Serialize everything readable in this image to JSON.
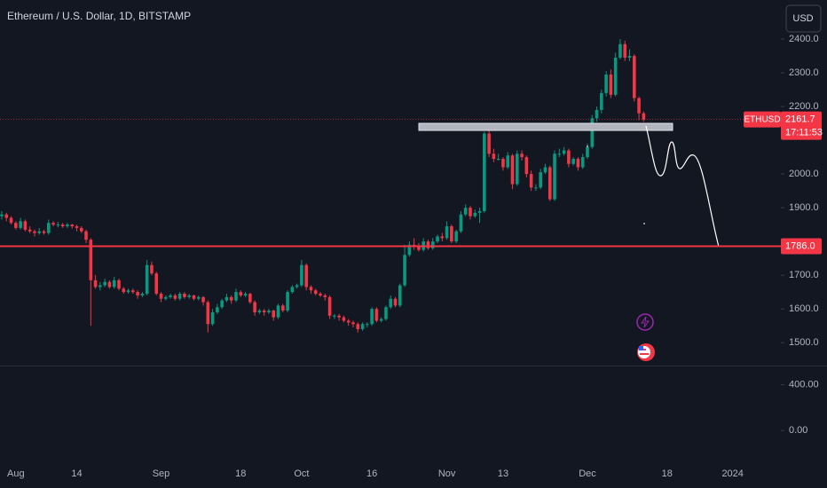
{
  "chart_data": {
    "type": "candlestick",
    "title": "Ethereum / U.S. Dollar, 1D, BITSTAMP",
    "currency": "USD",
    "categories": [
      null,
      null,
      null,
      "Aug",
      null,
      null,
      null,
      null,
      null,
      null,
      null,
      null,
      null,
      null,
      null,
      null,
      "14",
      null,
      null,
      null,
      null,
      null,
      null,
      null,
      null,
      null,
      null,
      null,
      null,
      null,
      null,
      null,
      null,
      null,
      "Sep",
      null,
      null,
      null,
      null,
      null,
      null,
      null,
      null,
      null,
      null,
      null,
      null,
      null,
      null,
      null,
      null,
      "18",
      null,
      null,
      null,
      null,
      null,
      null,
      null,
      null,
      null,
      null,
      null,
      null,
      "Oct",
      null,
      null,
      null,
      null,
      null,
      null,
      null,
      null,
      null,
      null,
      null,
      null,
      null,
      null,
      "16",
      null,
      null,
      null,
      null,
      null,
      null,
      null,
      null,
      null,
      null,
      null,
      null,
      null,
      null,
      null,
      "Nov",
      null,
      null,
      null,
      null,
      null,
      null,
      null,
      null,
      null,
      null,
      null,
      "13",
      null,
      null,
      null,
      null,
      null,
      null,
      null,
      null,
      null,
      null,
      null,
      null,
      null,
      null,
      null,
      null,
      null,
      "Dec",
      null,
      null,
      null,
      null,
      null,
      null,
      null,
      null,
      null,
      null,
      null,
      null,
      null,
      null,
      null,
      null,
      "18",
      null,
      null,
      null,
      null,
      null,
      null,
      null,
      null,
      null,
      null,
      null,
      null,
      null,
      "2024",
      null,
      null,
      null,
      null,
      null,
      null,
      null,
      null,
      null
    ],
    "ohlc": [
      [
        1875,
        1890,
        1865,
        1880
      ],
      [
        1880,
        1885,
        1860,
        1870
      ],
      [
        1870,
        1875,
        1850,
        1855
      ],
      [
        1855,
        1860,
        1835,
        1840
      ],
      [
        1840,
        1870,
        1835,
        1860
      ],
      [
        1860,
        1865,
        1830,
        1835
      ],
      [
        1835,
        1845,
        1825,
        1830
      ],
      [
        1830,
        1835,
        1815,
        1825
      ],
      [
        1825,
        1840,
        1820,
        1830
      ],
      [
        1830,
        1835,
        1820,
        1825
      ],
      [
        1825,
        1865,
        1820,
        1855
      ],
      [
        1855,
        1860,
        1845,
        1850
      ],
      [
        1850,
        1858,
        1842,
        1850
      ],
      [
        1850,
        1855,
        1840,
        1845
      ],
      [
        1845,
        1855,
        1840,
        1850
      ],
      [
        1850,
        1852,
        1838,
        1845
      ],
      [
        1845,
        1850,
        1830,
        1840
      ],
      [
        1840,
        1845,
        1825,
        1830
      ],
      [
        1830,
        1835,
        1795,
        1805
      ],
      [
        1805,
        1810,
        1550,
        1685
      ],
      [
        1685,
        1700,
        1660,
        1665
      ],
      [
        1665,
        1680,
        1655,
        1670
      ],
      [
        1670,
        1690,
        1665,
        1680
      ],
      [
        1680,
        1685,
        1660,
        1665
      ],
      [
        1665,
        1695,
        1660,
        1685
      ],
      [
        1685,
        1690,
        1655,
        1660
      ],
      [
        1660,
        1665,
        1645,
        1650
      ],
      [
        1650,
        1660,
        1645,
        1655
      ],
      [
        1655,
        1660,
        1645,
        1650
      ],
      [
        1650,
        1655,
        1630,
        1640
      ],
      [
        1640,
        1650,
        1635,
        1645
      ],
      [
        1645,
        1745,
        1640,
        1730
      ],
      [
        1730,
        1740,
        1700,
        1705
      ],
      [
        1705,
        1710,
        1640,
        1645
      ],
      [
        1645,
        1650,
        1620,
        1630
      ],
      [
        1630,
        1640,
        1625,
        1635
      ],
      [
        1635,
        1645,
        1630,
        1640
      ],
      [
        1640,
        1645,
        1625,
        1630
      ],
      [
        1630,
        1650,
        1625,
        1645
      ],
      [
        1645,
        1650,
        1630,
        1635
      ],
      [
        1635,
        1645,
        1630,
        1640
      ],
      [
        1640,
        1642,
        1625,
        1630
      ],
      [
        1630,
        1640,
        1625,
        1635
      ],
      [
        1635,
        1638,
        1610,
        1620
      ],
      [
        1620,
        1625,
        1530,
        1555
      ],
      [
        1555,
        1600,
        1550,
        1590
      ],
      [
        1590,
        1615,
        1585,
        1605
      ],
      [
        1605,
        1630,
        1600,
        1625
      ],
      [
        1625,
        1645,
        1620,
        1635
      ],
      [
        1635,
        1640,
        1615,
        1625
      ],
      [
        1625,
        1660,
        1620,
        1650
      ],
      [
        1650,
        1655,
        1635,
        1640
      ],
      [
        1640,
        1650,
        1635,
        1645
      ],
      [
        1645,
        1648,
        1615,
        1620
      ],
      [
        1620,
        1625,
        1580,
        1590
      ],
      [
        1590,
        1600,
        1585,
        1595
      ],
      [
        1595,
        1600,
        1580,
        1590
      ],
      [
        1590,
        1600,
        1585,
        1595
      ],
      [
        1595,
        1598,
        1565,
        1575
      ],
      [
        1575,
        1615,
        1570,
        1610
      ],
      [
        1610,
        1615,
        1590,
        1595
      ],
      [
        1595,
        1655,
        1590,
        1650
      ],
      [
        1650,
        1670,
        1645,
        1665
      ],
      [
        1665,
        1675,
        1660,
        1670
      ],
      [
        1670,
        1745,
        1665,
        1730
      ],
      [
        1730,
        1735,
        1655,
        1665
      ],
      [
        1665,
        1670,
        1645,
        1655
      ],
      [
        1655,
        1660,
        1640,
        1645
      ],
      [
        1645,
        1650,
        1635,
        1640
      ],
      [
        1640,
        1645,
        1625,
        1635
      ],
      [
        1635,
        1640,
        1570,
        1580
      ],
      [
        1580,
        1585,
        1570,
        1580
      ],
      [
        1580,
        1585,
        1565,
        1575
      ],
      [
        1575,
        1580,
        1560,
        1565
      ],
      [
        1565,
        1570,
        1550,
        1560
      ],
      [
        1560,
        1565,
        1545,
        1555
      ],
      [
        1555,
        1560,
        1530,
        1540
      ],
      [
        1540,
        1560,
        1535,
        1555
      ],
      [
        1555,
        1560,
        1545,
        1555
      ],
      [
        1555,
        1605,
        1550,
        1600
      ],
      [
        1600,
        1605,
        1560,
        1565
      ],
      [
        1565,
        1575,
        1560,
        1570
      ],
      [
        1570,
        1610,
        1565,
        1605
      ],
      [
        1605,
        1640,
        1600,
        1630
      ],
      [
        1630,
        1635,
        1605,
        1610
      ],
      [
        1610,
        1675,
        1605,
        1670
      ],
      [
        1670,
        1790,
        1665,
        1760
      ],
      [
        1760,
        1800,
        1755,
        1790
      ],
      [
        1790,
        1810,
        1775,
        1785
      ],
      [
        1785,
        1795,
        1770,
        1775
      ],
      [
        1775,
        1810,
        1770,
        1800
      ],
      [
        1800,
        1805,
        1775,
        1780
      ],
      [
        1780,
        1810,
        1775,
        1800
      ],
      [
        1800,
        1820,
        1795,
        1815
      ],
      [
        1815,
        1825,
        1800,
        1810
      ],
      [
        1810,
        1860,
        1805,
        1845
      ],
      [
        1845,
        1850,
        1795,
        1800
      ],
      [
        1800,
        1835,
        1795,
        1830
      ],
      [
        1830,
        1890,
        1825,
        1880
      ],
      [
        1880,
        1910,
        1875,
        1900
      ],
      [
        1900,
        1905,
        1865,
        1875
      ],
      [
        1875,
        1895,
        1870,
        1885
      ],
      [
        1885,
        1900,
        1855,
        1890
      ],
      [
        1890,
        2125,
        1885,
        2120
      ],
      [
        2120,
        2130,
        2050,
        2060
      ],
      [
        2060,
        2075,
        2035,
        2045
      ],
      [
        2045,
        2060,
        2040,
        2045
      ],
      [
        2045,
        2050,
        2010,
        2020
      ],
      [
        2020,
        2065,
        2015,
        2055
      ],
      [
        2055,
        2060,
        1955,
        1970
      ],
      [
        1970,
        2070,
        1965,
        2060
      ],
      [
        2060,
        2070,
        2040,
        2050
      ],
      [
        2050,
        2055,
        1990,
        2000
      ],
      [
        2000,
        2010,
        1950,
        1960
      ],
      [
        1960,
        1970,
        1950,
        1960
      ],
      [
        1960,
        2015,
        1955,
        2005
      ],
      [
        2005,
        2030,
        2000,
        2020
      ],
      [
        2020,
        2025,
        1920,
        1925
      ],
      [
        1925,
        2070,
        1920,
        2060
      ],
      [
        2060,
        2075,
        2050,
        2060
      ],
      [
        2060,
        2080,
        2055,
        2070
      ],
      [
        2070,
        2075,
        2020,
        2030
      ],
      [
        2030,
        2050,
        2025,
        2045
      ],
      [
        2045,
        2050,
        2010,
        2020
      ],
      [
        2020,
        2060,
        2015,
        2050
      ],
      [
        2050,
        2090,
        2045,
        2080
      ],
      [
        2080,
        2175,
        2075,
        2165
      ],
      [
        2165,
        2200,
        2155,
        2190
      ],
      [
        2190,
        2250,
        2180,
        2240
      ],
      [
        2240,
        2305,
        2230,
        2295
      ],
      [
        2295,
        2310,
        2225,
        2235
      ],
      [
        2235,
        2360,
        2230,
        2345
      ],
      [
        2345,
        2400,
        2340,
        2385
      ],
      [
        2385,
        2395,
        2335,
        2345
      ],
      [
        2345,
        2370,
        2335,
        2350
      ],
      [
        2350,
        2355,
        2215,
        2225
      ],
      [
        2225,
        2230,
        2160,
        2180
      ],
      [
        2180,
        2185,
        2155,
        2161.7
      ],
      null,
      null,
      null,
      null,
      null,
      null,
      null,
      null,
      null,
      null,
      null,
      null,
      null,
      null,
      null,
      null,
      null,
      null,
      null,
      null,
      null,
      null,
      null,
      null,
      null,
      null,
      null,
      null
    ],
    "up_color": "#089981",
    "down_color": "#f23645",
    "ylim": [
      1432,
      2516
    ],
    "yticks": [
      {
        "value": 2400,
        "label": "2400.0"
      },
      {
        "value": 2300,
        "label": "2300.0"
      },
      {
        "value": 2200,
        "label": "2200.0"
      },
      {
        "value": 2000,
        "label": "2000.0"
      },
      {
        "value": 1900,
        "label": "1900.0"
      },
      {
        "value": 1700,
        "label": "1700.0"
      },
      {
        "value": 1600,
        "label": "1600.0"
      },
      {
        "value": 1500,
        "label": "1500.0"
      }
    ],
    "horizontal_line": {
      "value": 1786,
      "label": "1786.0",
      "color": "#f23645"
    },
    "last_price": {
      "symbol": "ETHUSD",
      "value": 2161.7,
      "countdown": "17:11:53"
    },
    "lower_pane": {
      "ylim": [
        -270,
        560
      ],
      "yticks": [
        {
          "value": 400,
          "label": "400.00"
        },
        {
          "value": 0,
          "label": "0.00"
        }
      ]
    }
  }
}
